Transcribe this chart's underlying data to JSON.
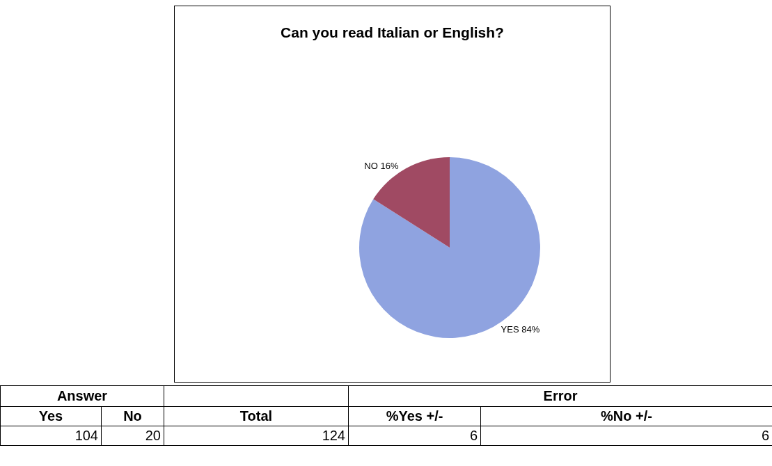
{
  "chart_data": [
    {
      "type": "pie",
      "title": "Can you read Italian or English?",
      "categories": [
        "YES",
        "NO"
      ],
      "values": [
        84,
        16
      ],
      "colors": [
        "#8fa3e0",
        "#a04a63"
      ],
      "value_labels": [
        "84%",
        "16%"
      ]
    },
    {
      "type": "other",
      "annotations": [
        "Answer",
        "Error",
        "Yes",
        "No",
        "Total",
        "%Yes +/-",
        "%No +/-",
        "104",
        "20",
        "124",
        "6",
        "6"
      ]
    }
  ]
}
